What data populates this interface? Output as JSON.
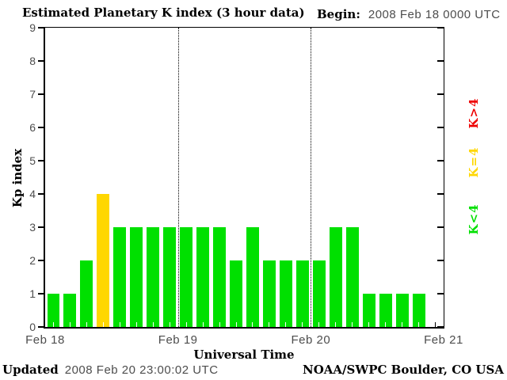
{
  "header": {
    "title": "Estimated Planetary K index (3 hour data)",
    "begin_label": "Begin:",
    "begin_value": "2008 Feb 18 0000 UTC"
  },
  "footer": {
    "updated_label": "Updated",
    "updated_value": "2008 Feb 20 23:00:02 UTC",
    "credit": "NOAA/SWPC Boulder, CO USA"
  },
  "chart_data": {
    "type": "bar",
    "title": "Estimated Planetary K index (3 hour data)",
    "begin": "2008 Feb 18 0000 UTC",
    "updated": "2008 Feb 20 23:00:02 UTC",
    "xlabel": "Universal Time",
    "ylabel": "Kp index",
    "ylim": [
      0,
      9
    ],
    "y_ticks": [
      0,
      1,
      2,
      3,
      4,
      5,
      6,
      7,
      8,
      9
    ],
    "x_tick_labels": [
      "Feb 18",
      "Feb 19",
      "Feb 20",
      "Feb 21"
    ],
    "days_shown": 3,
    "hours_per_bar": 3,
    "slots_total": 24,
    "values": [
      1,
      1,
      2,
      4,
      3,
      3,
      3,
      3,
      3,
      3,
      3,
      2,
      3,
      2,
      2,
      2,
      2,
      3,
      3,
      1,
      1,
      1,
      1
    ],
    "missing_slots": [
      23
    ],
    "grid": "dotted vertical lines at day boundaries (Feb 19, Feb 20)",
    "legend_position": "right",
    "colors": {
      "k_above_4": "#ee0000",
      "k_equal_4": "#ffd700",
      "k_below_4": "#00e000",
      "axis": "#000000",
      "muted_text": "#4d4d4d"
    },
    "legend": [
      {
        "label": "K>4",
        "color_key": "k_above_4"
      },
      {
        "label": "K=4",
        "color_key": "k_equal_4"
      },
      {
        "label": "K<4",
        "color_key": "k_below_4"
      }
    ]
  }
}
